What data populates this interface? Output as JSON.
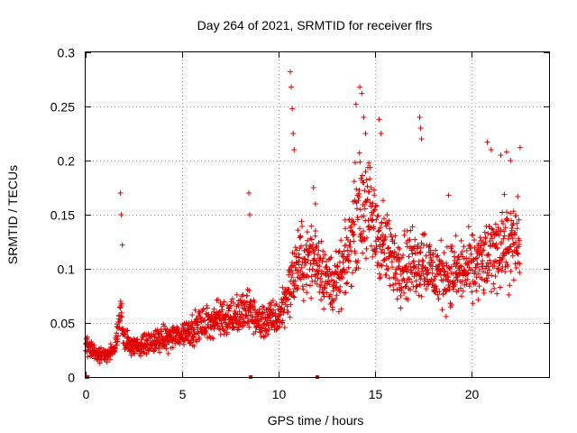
{
  "chart_data": {
    "type": "scatter",
    "title": "Day 264 of 2021, SRMTID for receiver flrs",
    "xlabel": "GPS time / hours",
    "ylabel": "SRMTID / TECUs",
    "xlim": [
      0,
      24
    ],
    "ylim": [
      0,
      0.3
    ],
    "xticks": [
      0,
      5,
      10,
      15,
      20
    ],
    "yticks": [
      0,
      0.05,
      0.1,
      0.15,
      0.2,
      0.25,
      0.3
    ],
    "xtick_labels": [
      "0",
      "5",
      "10",
      "15",
      "20"
    ],
    "ytick_labels": [
      "0",
      "0.05",
      "0.1",
      "0.15",
      "0.2",
      "0.25",
      "0.3"
    ],
    "grid": true,
    "marker": "+",
    "color": "#e00000",
    "series": [
      {
        "name": "SRMTID",
        "trend": [
          [
            0.0,
            0.03
          ],
          [
            0.5,
            0.022
          ],
          [
            1.0,
            0.02
          ],
          [
            1.5,
            0.025
          ],
          [
            1.8,
            0.06
          ],
          [
            2.0,
            0.035
          ],
          [
            2.5,
            0.028
          ],
          [
            3.0,
            0.03
          ],
          [
            4.0,
            0.035
          ],
          [
            5.0,
            0.04
          ],
          [
            6.0,
            0.048
          ],
          [
            7.0,
            0.055
          ],
          [
            8.0,
            0.058
          ],
          [
            8.5,
            0.062
          ],
          [
            9.0,
            0.05
          ],
          [
            10.0,
            0.055
          ],
          [
            10.5,
            0.08
          ],
          [
            11.0,
            0.105
          ],
          [
            12.0,
            0.11
          ],
          [
            12.5,
            0.09
          ],
          [
            13.0,
            0.085
          ],
          [
            13.5,
            0.105
          ],
          [
            14.0,
            0.15
          ],
          [
            14.5,
            0.16
          ],
          [
            15.0,
            0.135
          ],
          [
            15.5,
            0.12
          ],
          [
            16.0,
            0.105
          ],
          [
            17.0,
            0.105
          ],
          [
            17.5,
            0.11
          ],
          [
            18.0,
            0.095
          ],
          [
            19.0,
            0.095
          ],
          [
            20.0,
            0.1
          ],
          [
            21.0,
            0.11
          ],
          [
            21.5,
            0.125
          ],
          [
            22.0,
            0.12
          ],
          [
            22.5,
            0.125
          ]
        ],
        "peaks": [
          [
            1.8,
            0.17
          ],
          [
            1.85,
            0.15
          ],
          [
            1.9,
            0.122
          ],
          [
            8.45,
            0.17
          ],
          [
            8.5,
            0.15
          ],
          [
            10.6,
            0.282
          ],
          [
            10.65,
            0.268
          ],
          [
            10.7,
            0.248
          ],
          [
            10.75,
            0.225
          ],
          [
            10.8,
            0.21
          ],
          [
            11.8,
            0.175
          ],
          [
            11.9,
            0.16
          ],
          [
            14.0,
            0.252
          ],
          [
            14.2,
            0.268
          ],
          [
            14.3,
            0.262
          ],
          [
            14.4,
            0.24
          ],
          [
            14.5,
            0.225
          ],
          [
            15.2,
            0.238
          ],
          [
            15.3,
            0.225
          ],
          [
            17.3,
            0.24
          ],
          [
            17.35,
            0.23
          ],
          [
            17.4,
            0.22
          ],
          [
            18.8,
            0.168
          ],
          [
            20.8,
            0.217
          ],
          [
            21.0,
            0.21
          ],
          [
            21.5,
            0.205
          ],
          [
            21.8,
            0.208
          ],
          [
            22.0,
            0.2
          ],
          [
            22.5,
            0.212
          ]
        ],
        "zeros": [
          0.05,
          0.1,
          8.55,
          12.0
        ]
      }
    ]
  }
}
